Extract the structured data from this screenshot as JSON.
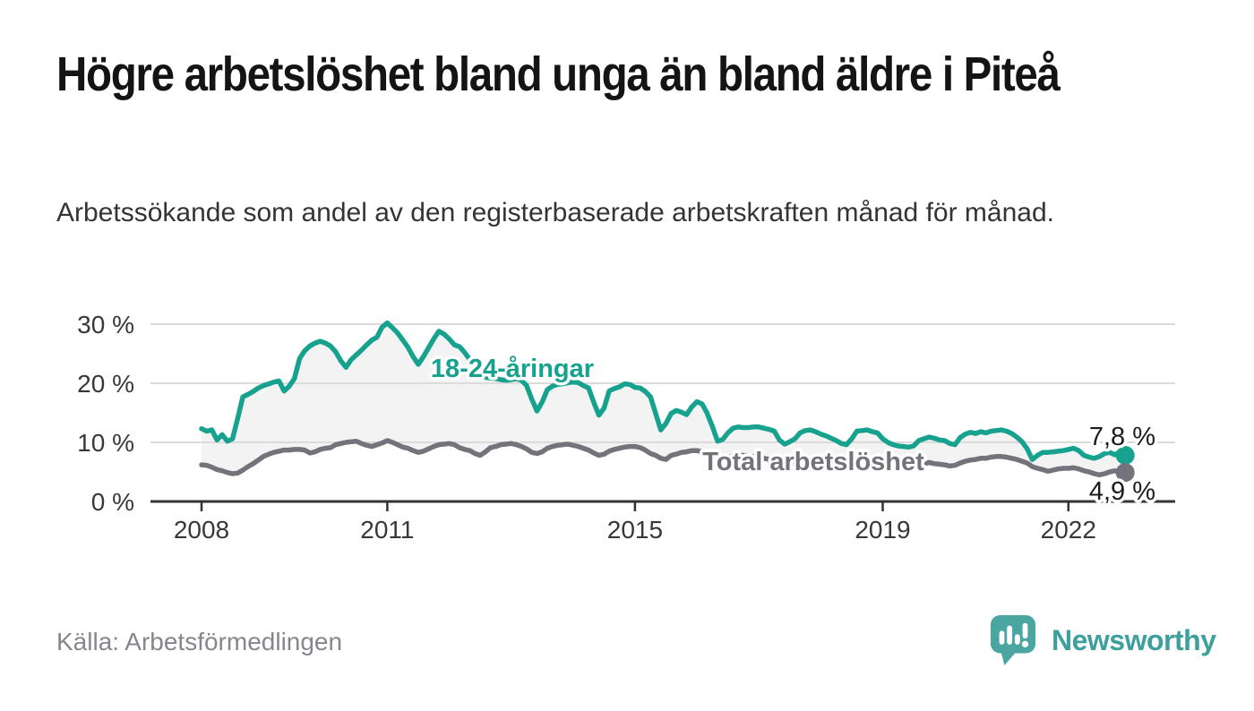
{
  "header": {
    "title": "Högre arbetslöshet bland unga än bland äldre i Piteå",
    "subtitle": "Arbetssökande som andel av den registerbaserade arbetskraften månad för månad."
  },
  "footer": {
    "source": "Källa: Arbetsförmedlingen",
    "brand": "Newsworthy"
  },
  "colors": {
    "young": "#16a28e",
    "total": "#76727b",
    "band": "#f3f3f3",
    "grid": "#dbdbdb",
    "axis": "#333333",
    "value_label": "#1c1c1c",
    "brand_teal": "#3da09d",
    "logo_fill": "#4ba5a1"
  },
  "chart_data": {
    "type": "line",
    "unit": "%",
    "frequency": "monthly",
    "x_start": "2008-01",
    "x_end": "2022-12",
    "grid": "horizontal",
    "x_tick_labels": [
      "2008",
      "2011",
      "2015",
      "2019",
      "2022"
    ],
    "x_tick_years": [
      2008,
      2011,
      2015,
      2019,
      2022
    ],
    "y_tick_labels": [
      "30 %",
      "20 %",
      "10 %",
      "0 %"
    ],
    "y_tick_values": [
      30,
      20,
      10,
      0
    ],
    "ylim": [
      0,
      32
    ],
    "band_fill_between_series": true,
    "series": [
      {
        "name": "18-24-åringar",
        "label": "18-24-åringar",
        "color": "#16a28e",
        "end_label": "7,8 %",
        "end_value": 7.8,
        "values": [
          12.3,
          11.9,
          12.1,
          10.4,
          11.3,
          10.2,
          10.6,
          14.0,
          17.7,
          18.1,
          18.6,
          19.2,
          19.6,
          19.9,
          20.2,
          20.4,
          18.7,
          19.5,
          20.8,
          24.2,
          25.5,
          26.3,
          26.8,
          27.1,
          26.8,
          26.3,
          25.3,
          23.8,
          22.7,
          24.0,
          24.8,
          25.6,
          26.5,
          27.3,
          27.8,
          29.5,
          30.2,
          29.4,
          28.5,
          27.3,
          26.1,
          24.5,
          23.2,
          24.5,
          26.0,
          27.5,
          28.8,
          28.3,
          27.5,
          26.5,
          26.2,
          25.2,
          24.0,
          22.8,
          21.6,
          21.0,
          20.9,
          20.8,
          20.6,
          20.5,
          20.6,
          20.8,
          20.5,
          19.6,
          17.3,
          15.3,
          16.8,
          18.9,
          19.5,
          19.8,
          19.9,
          20.1,
          20.2,
          20.1,
          19.6,
          19.2,
          16.8,
          14.6,
          15.8,
          18.7,
          19.1,
          19.4,
          19.9,
          19.8,
          19.3,
          19.2,
          18.6,
          17.7,
          14.9,
          12.1,
          13.2,
          14.9,
          15.4,
          15.1,
          14.7,
          16.0,
          16.9,
          16.5,
          14.9,
          12.7,
          10.2,
          10.5,
          11.6,
          12.4,
          12.6,
          12.5,
          12.5,
          12.6,
          12.6,
          12.4,
          12.2,
          11.9,
          10.4,
          9.7,
          10.1,
          10.6,
          11.6,
          12.0,
          12.1,
          11.8,
          11.4,
          11.1,
          10.7,
          10.3,
          9.8,
          9.6,
          10.6,
          11.9,
          12.0,
          12.1,
          11.8,
          11.6,
          10.6,
          10.0,
          9.6,
          9.4,
          9.3,
          9.2,
          9.4,
          10.3,
          10.6,
          10.9,
          10.7,
          10.4,
          10.3,
          9.8,
          9.6,
          10.8,
          11.4,
          11.7,
          11.5,
          11.8,
          11.6,
          11.9,
          12.0,
          12.1,
          11.9,
          11.5,
          10.9,
          10.1,
          8.9,
          7.1,
          7.8,
          8.3,
          8.3,
          8.4,
          8.5,
          8.6,
          8.8,
          9.0,
          8.6,
          7.8,
          7.5,
          7.3,
          7.6,
          8.1,
          8.3,
          7.9,
          8.4,
          7.8
        ]
      },
      {
        "name": "Total arbetslöshet",
        "label": "Total arbetslöshet",
        "color": "#76727b",
        "end_label": "4,9 %",
        "end_value": 4.9,
        "values": [
          6.2,
          6.1,
          5.8,
          5.4,
          5.2,
          4.9,
          4.7,
          4.8,
          5.3,
          5.9,
          6.4,
          7.0,
          7.6,
          8.0,
          8.3,
          8.5,
          8.7,
          8.7,
          8.8,
          8.8,
          8.7,
          8.2,
          8.4,
          8.8,
          9.0,
          9.1,
          9.6,
          9.8,
          10.0,
          10.1,
          10.2,
          9.8,
          9.5,
          9.3,
          9.6,
          9.9,
          10.3,
          10.0,
          9.6,
          9.2,
          9.0,
          8.6,
          8.3,
          8.5,
          8.9,
          9.3,
          9.6,
          9.7,
          9.8,
          9.6,
          9.1,
          8.8,
          8.6,
          8.1,
          7.8,
          8.4,
          9.1,
          9.3,
          9.6,
          9.7,
          9.8,
          9.6,
          9.3,
          8.9,
          8.3,
          8.1,
          8.4,
          9.0,
          9.3,
          9.5,
          9.6,
          9.7,
          9.5,
          9.3,
          9.0,
          8.7,
          8.2,
          7.8,
          8.0,
          8.5,
          8.8,
          9.0,
          9.2,
          9.3,
          9.3,
          9.1,
          8.7,
          8.1,
          7.8,
          7.3,
          7.1,
          7.8,
          8.0,
          8.3,
          8.4,
          8.6,
          8.6,
          8.4,
          8.0,
          7.6,
          7.1,
          7.3,
          7.5,
          7.7,
          7.8,
          7.8,
          7.7,
          7.6,
          7.5,
          7.3,
          7.1,
          6.9,
          6.6,
          6.4,
          6.3,
          6.5,
          6.7,
          6.8,
          6.8,
          6.7,
          6.6,
          6.4,
          6.2,
          6.0,
          5.8,
          5.6,
          5.5,
          5.7,
          5.9,
          6.0,
          6.1,
          6.1,
          6.2,
          6.1,
          6.0,
          5.9,
          5.9,
          5.8,
          5.9,
          6.1,
          6.3,
          6.6,
          6.4,
          6.3,
          6.2,
          6.0,
          6.1,
          6.5,
          6.8,
          7.0,
          7.1,
          7.3,
          7.3,
          7.5,
          7.6,
          7.6,
          7.5,
          7.3,
          7.1,
          6.8,
          6.5,
          5.9,
          5.6,
          5.4,
          5.1,
          5.3,
          5.5,
          5.6,
          5.6,
          5.7,
          5.5,
          5.2,
          5.0,
          4.7,
          4.5,
          4.7,
          5.0,
          5.2,
          4.8,
          4.9
        ]
      }
    ]
  }
}
